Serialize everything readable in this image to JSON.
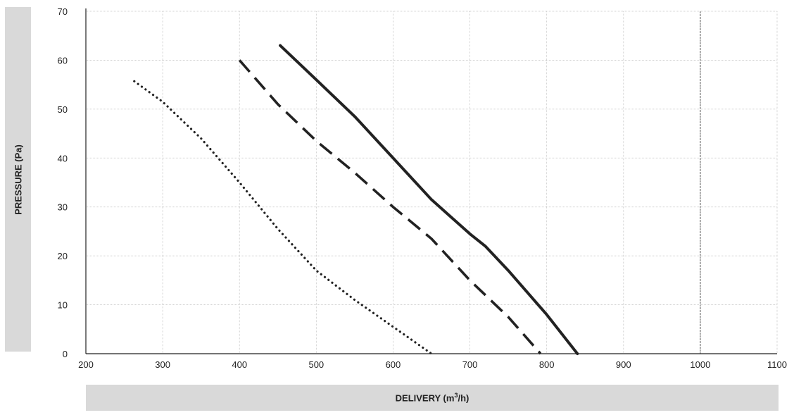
{
  "chart_data": {
    "type": "line",
    "xlabel": "DELIVERY (m",
    "xlabel_sup": "3",
    "xlabel_tail": "/h)",
    "ylabel": "PRESSURE (Pa)",
    "xlim": [
      200,
      1100
    ],
    "ylim": [
      0,
      70
    ],
    "x_ticks": [
      "200",
      "300",
      "400",
      "500",
      "600",
      "700",
      "800",
      "900",
      "1000",
      "1100"
    ],
    "y_ticks": [
      "0",
      "10",
      "20",
      "30",
      "40",
      "50",
      "60",
      "70"
    ],
    "grid": true,
    "legend": "none",
    "series": [
      {
        "style": "dotted",
        "color": "#222222",
        "x": [
          263,
          300,
          350,
          400,
          450,
          500,
          550,
          600,
          650
        ],
        "y": [
          55.7,
          51.5,
          44,
          35,
          25.5,
          17,
          11,
          5.5,
          0
        ]
      },
      {
        "style": "dashed",
        "color": "#222222",
        "x": [
          400,
          450,
          500,
          550,
          600,
          650,
          700,
          750,
          792
        ],
        "y": [
          60,
          51,
          43.5,
          37,
          30,
          23.5,
          15,
          7.5,
          0
        ]
      },
      {
        "style": "solid",
        "color": "#222222",
        "x": [
          453,
          500,
          550,
          600,
          650,
          700,
          720,
          750,
          800,
          840
        ],
        "y": [
          63,
          56,
          48.5,
          40,
          31.5,
          24.5,
          22,
          17,
          8,
          0
        ]
      }
    ]
  }
}
